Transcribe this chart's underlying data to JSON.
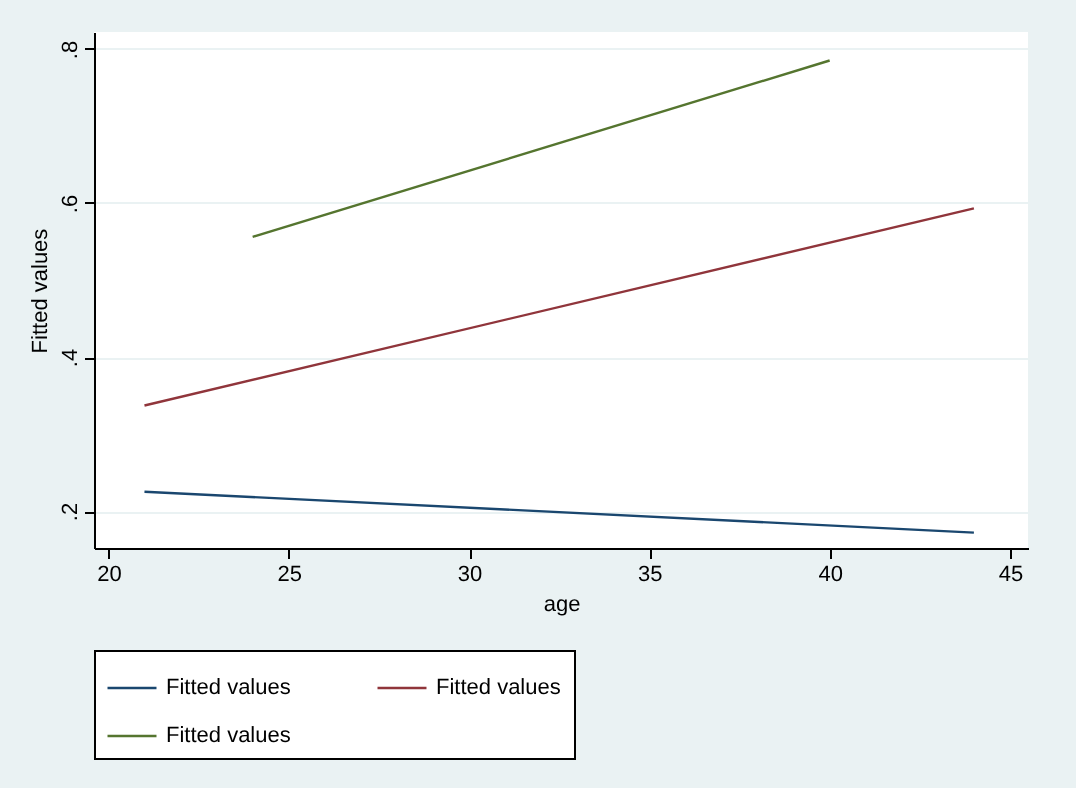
{
  "chart_data": {
    "type": "line",
    "xlabel": "age",
    "ylabel": "Fitted values",
    "xlim": [
      19.6,
      45.5
    ],
    "xticks": [
      20,
      25,
      30,
      35,
      40,
      45
    ],
    "ylim": [
      0.152,
      0.822
    ],
    "yticks": [
      {
        "value": 0.2,
        "label": ".2"
      },
      {
        "value": 0.4,
        "label": ".4"
      },
      {
        "value": 0.6,
        "label": ".6"
      },
      {
        "value": 0.8,
        "label": ".8"
      }
    ],
    "grid": "y",
    "legend": "bottom",
    "marker": "none",
    "line_style": "solid",
    "series": [
      {
        "name": "Fitted values",
        "color": "#1a476f",
        "x": [
          21,
          44
        ],
        "values": [
          0.225,
          0.172
        ]
      },
      {
        "name": "Fitted values",
        "color": "#90353b",
        "x": [
          21,
          44
        ],
        "values": [
          0.337,
          0.593
        ]
      },
      {
        "name": "Fitted values",
        "color": "#55752f",
        "x": [
          24,
          40
        ],
        "values": [
          0.556,
          0.785
        ]
      }
    ]
  }
}
